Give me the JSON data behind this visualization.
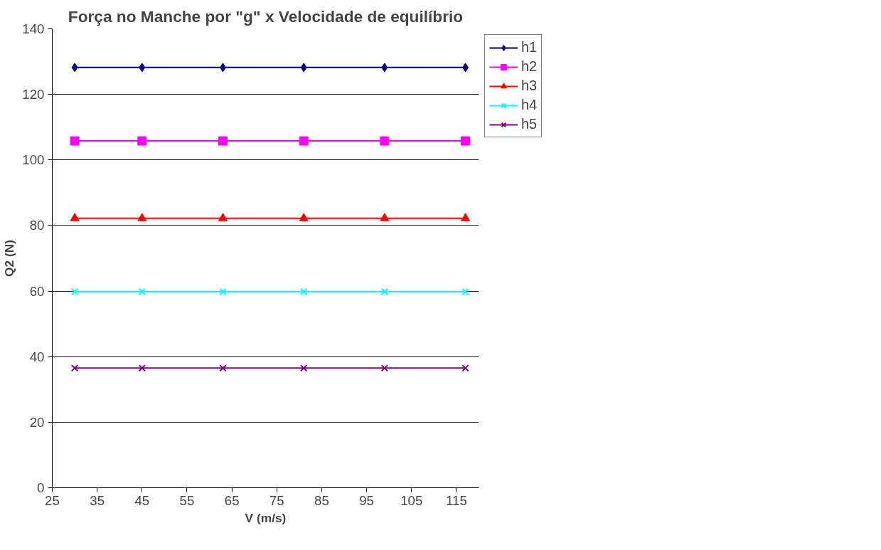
{
  "chart_data": {
    "type": "line",
    "title": "Força no Manche por \"g\" x Velocidade de equilíbrio",
    "xlabel": "V (m/s)",
    "ylabel": "Q2 (N)",
    "x": [
      30,
      45,
      63,
      81,
      99,
      117
    ],
    "series": [
      {
        "name": "h1",
        "color": "#000080",
        "marker": "diamond",
        "values": [
          128.2,
          128.2,
          128.2,
          128.2,
          128.2,
          128.2
        ]
      },
      {
        "name": "h2",
        "color": "#ff00ff",
        "marker": "square",
        "values": [
          105.8,
          105.8,
          105.8,
          105.8,
          105.8,
          105.8
        ]
      },
      {
        "name": "h3",
        "color": "#ff0000",
        "marker": "triangle",
        "values": [
          82.2,
          82.2,
          82.2,
          82.2,
          82.2,
          82.2
        ]
      },
      {
        "name": "h4",
        "color": "#00ffff",
        "marker": "cross",
        "values": [
          59.8,
          59.8,
          59.8,
          59.8,
          59.8,
          59.8
        ]
      },
      {
        "name": "h5",
        "color": "#800080",
        "marker": "cross",
        "values": [
          36.5,
          36.5,
          36.5,
          36.5,
          36.5,
          36.5
        ]
      }
    ],
    "xlim": [
      25,
      120
    ],
    "xticks": [
      25,
      35,
      45,
      55,
      65,
      75,
      85,
      95,
      105,
      115
    ],
    "ylim": [
      0,
      140
    ],
    "yticks": [
      0,
      20,
      40,
      60,
      80,
      100,
      120,
      140
    ],
    "grid": "y",
    "legend": "top right",
    "line_style": "solid"
  }
}
